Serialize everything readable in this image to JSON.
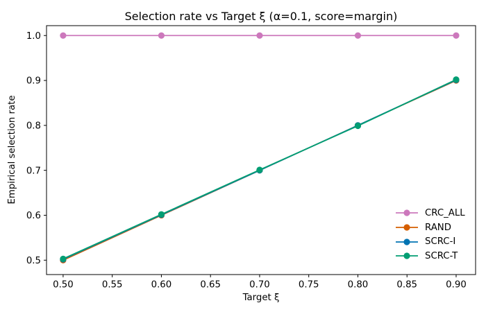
{
  "figure": {
    "title": "Selection rate vs Target ξ (α=0.1, score=margin)",
    "xlabel": "Target ξ",
    "ylabel": "Empirical selection rate"
  },
  "chart_data": {
    "type": "line",
    "title": "Selection rate vs Target ξ (α=0.1, score=margin)",
    "xlabel": "Target ξ",
    "ylabel": "Empirical selection rate",
    "x": [
      0.5,
      0.6,
      0.7,
      0.8,
      0.9
    ],
    "series": [
      {
        "name": "CRC_ALL",
        "color": "#cc78bc",
        "values": [
          1.0,
          1.0,
          1.0,
          1.0,
          1.0
        ]
      },
      {
        "name": "RAND",
        "color": "#d55e00",
        "values": [
          0.5,
          0.6,
          0.7,
          0.8,
          0.9
        ]
      },
      {
        "name": "SCRC-I",
        "color": "#0173b2",
        "values": [
          0.502,
          0.601,
          0.7,
          0.8,
          0.901
        ]
      },
      {
        "name": "SCRC-T",
        "color": "#029e73",
        "values": [
          0.503,
          0.602,
          0.701,
          0.799,
          0.902
        ]
      }
    ],
    "x_ticks": [
      "0.50",
      "0.55",
      "0.60",
      "0.65",
      "0.70",
      "0.75",
      "0.80",
      "0.85",
      "0.90"
    ],
    "y_ticks": [
      "0.5",
      "0.6",
      "0.7",
      "0.8",
      "0.9",
      "1.0"
    ],
    "xlim": [
      0.4831,
      0.9198
    ],
    "ylim": [
      0.468,
      1.022
    ],
    "grid": false,
    "marker": "o",
    "legend_position": "lower right",
    "legend_frame": false,
    "spine_color": "#000000",
    "background_color": "#ffffff"
  }
}
